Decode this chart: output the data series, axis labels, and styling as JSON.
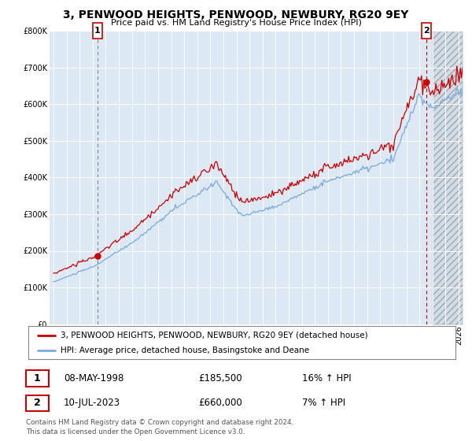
{
  "title": "3, PENWOOD HEIGHTS, PENWOOD, NEWBURY, RG20 9EY",
  "subtitle": "Price paid vs. HM Land Registry's House Price Index (HPI)",
  "legend_label_red": "3, PENWOOD HEIGHTS, PENWOOD, NEWBURY, RG20 9EY (detached house)",
  "legend_label_blue": "HPI: Average price, detached house, Basingstoke and Deane",
  "annotation1_label": "1",
  "annotation1_date": "08-MAY-1998",
  "annotation1_price": "£185,500",
  "annotation1_hpi": "16% ↑ HPI",
  "annotation2_label": "2",
  "annotation2_date": "10-JUL-2023",
  "annotation2_price": "£660,000",
  "annotation2_hpi": "7% ↑ HPI",
  "footer": "Contains HM Land Registry data © Crown copyright and database right 2024.\nThis data is licensed under the Open Government Licence v3.0.",
  "background_color": "#ffffff",
  "plot_background": "#dce9f5",
  "future_hatch_color": "#c8c8c8",
  "grid_color": "#ffffff",
  "red_color": "#cc0000",
  "blue_color": "#7aaadd",
  "vline1_color": "#888888",
  "vline2_color": "#cc0000",
  "annotation_box_color": "#cc0000",
  "ylim": [
    0,
    800000
  ],
  "yticks": [
    0,
    100000,
    200000,
    300000,
    400000,
    500000,
    600000,
    700000,
    800000
  ],
  "sale1_x": 1998.37,
  "sale1_y": 185500,
  "sale2_x": 2023.54,
  "sale2_y": 660000,
  "vline1_x": 1998.37,
  "vline2_x": 2023.54,
  "future_start_x": 2024.0,
  "xmin": 1994.7,
  "xmax": 2026.3,
  "xticks": [
    1995,
    1996,
    1997,
    1998,
    1999,
    2000,
    2001,
    2002,
    2003,
    2004,
    2005,
    2006,
    2007,
    2008,
    2009,
    2010,
    2011,
    2012,
    2013,
    2014,
    2015,
    2016,
    2017,
    2018,
    2019,
    2020,
    2021,
    2022,
    2023,
    2024,
    2025,
    2026
  ]
}
